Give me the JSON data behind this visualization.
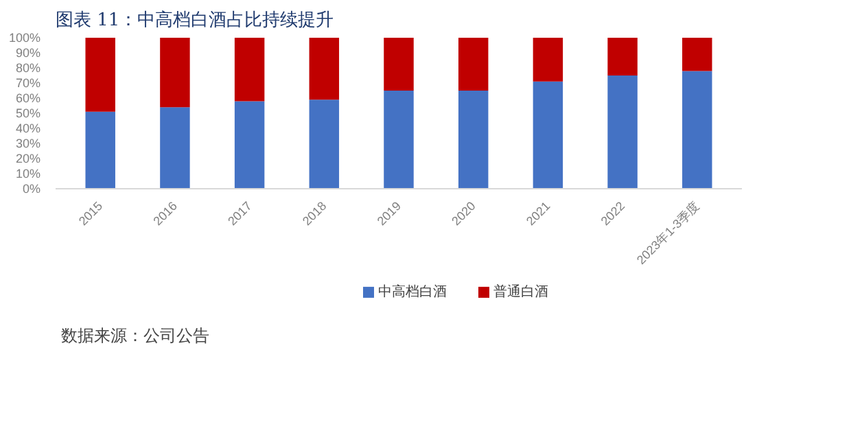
{
  "chart_data": {
    "type": "bar",
    "stacked": true,
    "title": "图表 11：中高档白酒占比持续提升",
    "categories": [
      "2015",
      "2016",
      "2017",
      "2018",
      "2019",
      "2020",
      "2021",
      "2022",
      "2023年1-3季度"
    ],
    "series": [
      {
        "name": "中高档白酒",
        "color": "#4472c4",
        "values": [
          51,
          54,
          58,
          59,
          65,
          65,
          71,
          75,
          78
        ]
      },
      {
        "name": "普通白酒",
        "color": "#c00000",
        "values": [
          49,
          46,
          42,
          41,
          35,
          35,
          29,
          25,
          22
        ]
      }
    ],
    "ylim": [
      0,
      100
    ],
    "yticks": [
      {
        "value": 0,
        "label": "0%"
      },
      {
        "value": 10,
        "label": "10%"
      },
      {
        "value": 20,
        "label": "20%"
      },
      {
        "value": 30,
        "label": "30%"
      },
      {
        "value": 40,
        "label": "40%"
      },
      {
        "value": 50,
        "label": "50%"
      },
      {
        "value": 60,
        "label": "60%"
      },
      {
        "value": 70,
        "label": "70%"
      },
      {
        "value": 80,
        "label": "80%"
      },
      {
        "value": 90,
        "label": "90%"
      },
      {
        "value": 100,
        "label": "100%"
      }
    ],
    "grid": false,
    "legend": "bottom",
    "annotations": [
      "数据来源：公司公告"
    ]
  }
}
